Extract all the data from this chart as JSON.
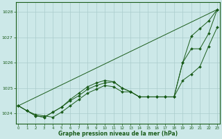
{
  "title": "Graphe pression niveau de la mer (hPa)",
  "bg_color": "#cce8e8",
  "grid_color": "#aacccc",
  "line_color": "#1a5c1a",
  "ylim": [
    1023.6,
    1028.4
  ],
  "xlim": [
    -0.3,
    23.3
  ],
  "yticks": [
    1024,
    1025,
    1026,
    1027,
    1028
  ],
  "xticks": [
    0,
    1,
    2,
    3,
    4,
    5,
    6,
    7,
    8,
    9,
    10,
    11,
    12,
    13,
    14,
    15,
    16,
    17,
    18,
    19,
    20,
    21,
    22,
    23
  ],
  "series": [
    {
      "x": [
        0,
        23
      ],
      "y": [
        1024.3,
        1028.1
      ],
      "has_markers": false
    },
    {
      "x": [
        0,
        1,
        2,
        3,
        4,
        5,
        6,
        7,
        8,
        9,
        10,
        11,
        12,
        13,
        14,
        15,
        16,
        17,
        18,
        19,
        20,
        21,
        22,
        23
      ],
      "y": [
        1024.3,
        1024.1,
        1023.9,
        1023.85,
        1024.05,
        1024.25,
        1024.5,
        1024.7,
        1024.95,
        1025.1,
        1025.2,
        1025.25,
        1025.0,
        1024.85,
        1024.65,
        1024.65,
        1024.65,
        1024.65,
        1024.65,
        1026.0,
        1027.05,
        1027.35,
        1027.65,
        1028.1
      ],
      "has_markers": true
    },
    {
      "x": [
        0,
        1,
        2,
        3,
        4,
        5,
        6,
        7,
        8,
        9,
        10,
        11,
        12,
        13,
        14,
        15,
        16,
        17,
        18,
        19,
        20,
        21,
        22,
        23
      ],
      "y": [
        1024.3,
        1024.1,
        1023.9,
        1023.85,
        1024.05,
        1024.25,
        1024.55,
        1024.8,
        1025.05,
        1025.2,
        1025.3,
        1025.25,
        1025.0,
        1024.85,
        1024.65,
        1024.65,
        1024.65,
        1024.65,
        1024.65,
        1025.3,
        1025.55,
        1025.85,
        1026.65,
        1027.4
      ],
      "has_markers": true
    },
    {
      "x": [
        0,
        1,
        2,
        3,
        4,
        5,
        6,
        7,
        8,
        9,
        10,
        11,
        12,
        13,
        14,
        15,
        16,
        17,
        18,
        19,
        20,
        21,
        22,
        23
      ],
      "y": [
        1024.3,
        1024.1,
        1023.95,
        1023.9,
        1023.85,
        1024.05,
        1024.3,
        1024.55,
        1024.8,
        1024.95,
        1025.1,
        1025.05,
        1024.85,
        1024.85,
        1024.65,
        1024.65,
        1024.65,
        1024.65,
        1024.65,
        1026.0,
        1026.55,
        1026.55,
        1027.15,
        1028.1
      ],
      "has_markers": true
    }
  ]
}
